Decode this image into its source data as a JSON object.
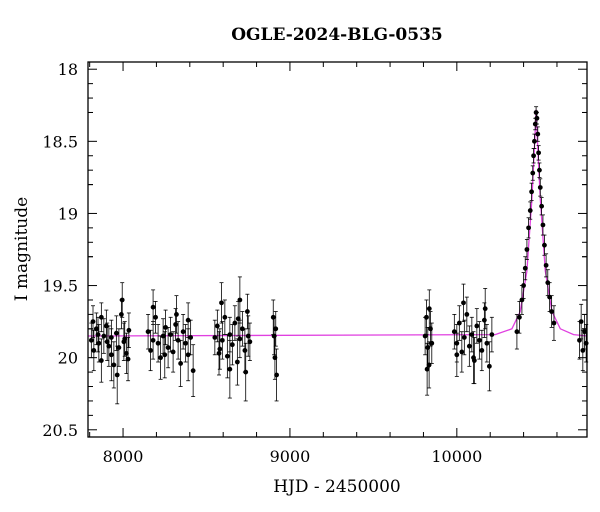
{
  "chart_data": {
    "type": "scatter",
    "title": "OGLE-2024-BLG-0535",
    "xlabel": "HJD - 2450000",
    "ylabel": "I magnitude",
    "xlim": [
      7790,
      10780
    ],
    "ylim": [
      20.55,
      17.95
    ],
    "y_inverted": true,
    "xticks": [
      8000,
      9000,
      10000
    ],
    "xtick_labels": [
      "8000",
      "9000",
      "10000"
    ],
    "yticks": [
      18,
      18.5,
      19,
      19.5,
      20,
      20.5
    ],
    "ytick_labels": [
      "18",
      "18.5",
      "19",
      "19.5",
      "20",
      "20.5"
    ],
    "grid": false,
    "colors": {
      "points": "#000000",
      "model": "#e040e0"
    },
    "model": {
      "type": "single-lens microlensing fit",
      "baseline_mag": 19.85,
      "peak_mag": 18.28,
      "peak_hjd": 10475,
      "flank_points": [
        [
          10230,
          19.84
        ],
        [
          10330,
          19.8
        ],
        [
          10380,
          19.68
        ],
        [
          10420,
          19.4
        ],
        [
          10450,
          18.9
        ],
        [
          10465,
          18.55
        ],
        [
          10475,
          18.28
        ],
        [
          10485,
          18.55
        ],
        [
          10500,
          18.9
        ],
        [
          10530,
          19.4
        ],
        [
          10570,
          19.68
        ],
        [
          10620,
          19.8
        ],
        [
          10700,
          19.84
        ]
      ]
    },
    "series": [
      {
        "points": [
          [
            7810,
            19.88,
            0.12
          ],
          [
            7825,
            19.95,
            0.14
          ],
          [
            7840,
            19.8,
            0.11
          ],
          [
            7855,
            19.9,
            0.13
          ],
          [
            7870,
            20.02,
            0.15
          ],
          [
            7885,
            19.85,
            0.12
          ],
          [
            7900,
            19.78,
            0.11
          ],
          [
            7915,
            19.92,
            0.14
          ],
          [
            7930,
            19.86,
            0.12
          ],
          [
            7945,
            20.05,
            0.16
          ],
          [
            7960,
            19.83,
            0.12
          ],
          [
            7975,
            19.93,
            0.13
          ],
          [
            7990,
            19.7,
            0.1
          ],
          [
            8005,
            19.89,
            0.13
          ],
          [
            8020,
            19.97,
            0.14
          ],
          [
            8035,
            19.81,
            0.12
          ],
          [
            7820,
            19.75,
            0.11
          ],
          [
            7870,
            19.72,
            0.1
          ],
          [
            7930,
            19.98,
            0.18
          ],
          [
            7965,
            20.12,
            0.2
          ],
          [
            7995,
            19.6,
            0.12
          ],
          [
            8010,
            19.87,
            0.12
          ],
          [
            8030,
            20.01,
            0.15
          ],
          [
            7850,
            19.84,
            0.12
          ],
          [
            7905,
            19.89,
            0.13
          ],
          [
            8150,
            19.82,
            0.12
          ],
          [
            8165,
            19.95,
            0.14
          ],
          [
            8180,
            19.88,
            0.13
          ],
          [
            8195,
            19.72,
            0.11
          ],
          [
            8210,
            19.9,
            0.13
          ],
          [
            8225,
            20.0,
            0.15
          ],
          [
            8240,
            19.85,
            0.12
          ],
          [
            8255,
            19.79,
            0.12
          ],
          [
            8270,
            19.93,
            0.14
          ],
          [
            8285,
            19.84,
            0.12
          ],
          [
            8300,
            19.96,
            0.14
          ],
          [
            8315,
            19.77,
            0.11
          ],
          [
            8330,
            19.88,
            0.13
          ],
          [
            8345,
            20.04,
            0.16
          ],
          [
            8360,
            19.82,
            0.12
          ],
          [
            8375,
            19.9,
            0.13
          ],
          [
            8390,
            19.74,
            0.12
          ],
          [
            8405,
            19.86,
            0.12
          ],
          [
            8420,
            20.09,
            0.18
          ],
          [
            8180,
            19.65,
            0.12
          ],
          [
            8250,
            19.98,
            0.16
          ],
          [
            8320,
            19.7,
            0.13
          ],
          [
            8390,
            19.98,
            0.18
          ],
          [
            8550,
            19.86,
            0.12
          ],
          [
            8565,
            19.78,
            0.11
          ],
          [
            8580,
            19.94,
            0.14
          ],
          [
            8595,
            19.88,
            0.13
          ],
          [
            8610,
            19.72,
            0.12
          ],
          [
            8625,
            19.99,
            0.15
          ],
          [
            8640,
            19.84,
            0.12
          ],
          [
            8655,
            19.91,
            0.14
          ],
          [
            8670,
            19.76,
            0.12
          ],
          [
            8685,
            20.03,
            0.16
          ],
          [
            8700,
            19.87,
            0.13
          ],
          [
            8715,
            19.8,
            0.12
          ],
          [
            8730,
            19.95,
            0.15
          ],
          [
            8745,
            19.68,
            0.12
          ],
          [
            8760,
            19.89,
            0.13
          ],
          [
            8590,
            19.62,
            0.14
          ],
          [
            8640,
            20.08,
            0.2
          ],
          [
            8700,
            19.6,
            0.16
          ],
          [
            8735,
            20.1,
            0.2
          ],
          [
            8575,
            19.97,
            0.15
          ],
          [
            8690,
            19.73,
            0.12
          ],
          [
            8750,
            19.85,
            0.14
          ],
          [
            8900,
            19.72,
            0.12
          ],
          [
            8905,
            19.85,
            0.13
          ],
          [
            8910,
            20.0,
            0.15
          ],
          [
            8915,
            19.8,
            0.12
          ],
          [
            8920,
            20.12,
            0.18
          ],
          [
            9810,
            19.85,
            0.13
          ],
          [
            9818,
            19.72,
            0.12
          ],
          [
            9826,
            19.93,
            0.14
          ],
          [
            9834,
            20.05,
            0.16
          ],
          [
            9842,
            19.8,
            0.12
          ],
          [
            9850,
            19.9,
            0.14
          ],
          [
            9835,
            19.66,
            0.13
          ],
          [
            9822,
            20.08,
            0.18
          ],
          [
            9985,
            19.82,
            0.12
          ],
          [
            10000,
            19.9,
            0.13
          ],
          [
            10015,
            19.76,
            0.12
          ],
          [
            10030,
            19.96,
            0.14
          ],
          [
            10045,
            19.86,
            0.12
          ],
          [
            10060,
            19.7,
            0.12
          ],
          [
            10075,
            19.92,
            0.14
          ],
          [
            10090,
            19.84,
            0.12
          ],
          [
            10105,
            20.02,
            0.16
          ],
          [
            10120,
            19.78,
            0.12
          ],
          [
            10135,
            19.88,
            0.13
          ],
          [
            10150,
            19.95,
            0.14
          ],
          [
            10165,
            19.74,
            0.12
          ],
          [
            10180,
            19.9,
            0.13
          ],
          [
            10195,
            20.06,
            0.17
          ],
          [
            10210,
            19.84,
            0.12
          ],
          [
            10040,
            19.62,
            0.13
          ],
          [
            10100,
            20.0,
            0.18
          ],
          [
            10170,
            19.66,
            0.14
          ],
          [
            10000,
            19.98,
            0.15
          ],
          [
            10360,
            19.82,
            0.12
          ],
          [
            10375,
            19.72,
            0.11
          ],
          [
            10390,
            19.6,
            0.1
          ],
          [
            10400,
            19.5,
            0.09
          ],
          [
            10410,
            19.38,
            0.08
          ],
          [
            10420,
            19.25,
            0.07
          ],
          [
            10430,
            19.1,
            0.07
          ],
          [
            10440,
            18.98,
            0.06
          ],
          [
            10448,
            18.85,
            0.06
          ],
          [
            10455,
            18.72,
            0.05
          ],
          [
            10460,
            18.6,
            0.05
          ],
          [
            10465,
            18.5,
            0.05
          ],
          [
            10470,
            18.38,
            0.04
          ],
          [
            10475,
            18.3,
            0.04
          ],
          [
            10480,
            18.34,
            0.04
          ],
          [
            10485,
            18.45,
            0.05
          ],
          [
            10490,
            18.58,
            0.05
          ],
          [
            10495,
            18.7,
            0.05
          ],
          [
            10500,
            18.82,
            0.06
          ],
          [
            10508,
            18.95,
            0.06
          ],
          [
            10516,
            19.08,
            0.07
          ],
          [
            10525,
            19.22,
            0.07
          ],
          [
            10535,
            19.36,
            0.08
          ],
          [
            10545,
            19.48,
            0.09
          ],
          [
            10556,
            19.58,
            0.1
          ],
          [
            10568,
            19.68,
            0.11
          ],
          [
            10582,
            19.76,
            0.12
          ],
          [
            10735,
            19.88,
            0.13
          ],
          [
            10745,
            19.75,
            0.12
          ],
          [
            10755,
            19.95,
            0.14
          ],
          [
            10765,
            19.82,
            0.12
          ],
          [
            10775,
            19.9,
            0.13
          ]
        ]
      }
    ]
  }
}
